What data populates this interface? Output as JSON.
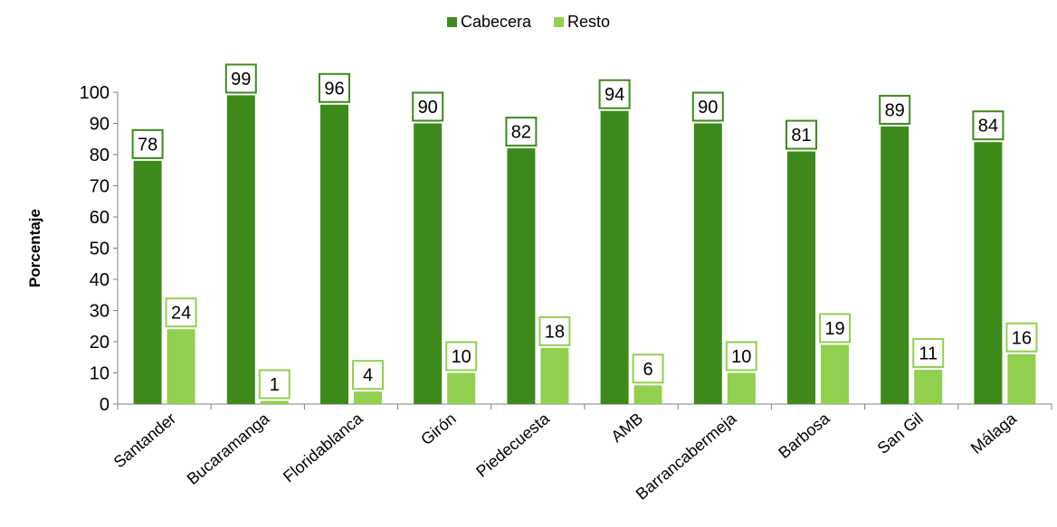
{
  "colors": {
    "cabecera": "#3d8a1b",
    "resto": "#92d050",
    "axis": "#808080"
  },
  "chart_data": {
    "type": "bar",
    "title": "",
    "xlabel": "",
    "ylabel": "Porcentaje",
    "ylim": [
      0,
      100
    ],
    "yticks": [
      0,
      10,
      20,
      30,
      40,
      50,
      60,
      70,
      80,
      90,
      100
    ],
    "grid": false,
    "legend_position": "top-center",
    "categories": [
      "Santander",
      "Bucaramanga",
      "Floridablanca",
      "Girón",
      "Piedecuesta",
      "AMB",
      "Barrancabermeja",
      "Barbosa",
      "San Gil",
      "Málaga"
    ],
    "series": [
      {
        "name": "Cabecera",
        "values": [
          78,
          99,
          96,
          90,
          82,
          94,
          90,
          81,
          89,
          84
        ]
      },
      {
        "name": "Resto",
        "values": [
          24,
          1,
          4,
          10,
          18,
          6,
          10,
          19,
          11,
          16
        ]
      }
    ]
  }
}
